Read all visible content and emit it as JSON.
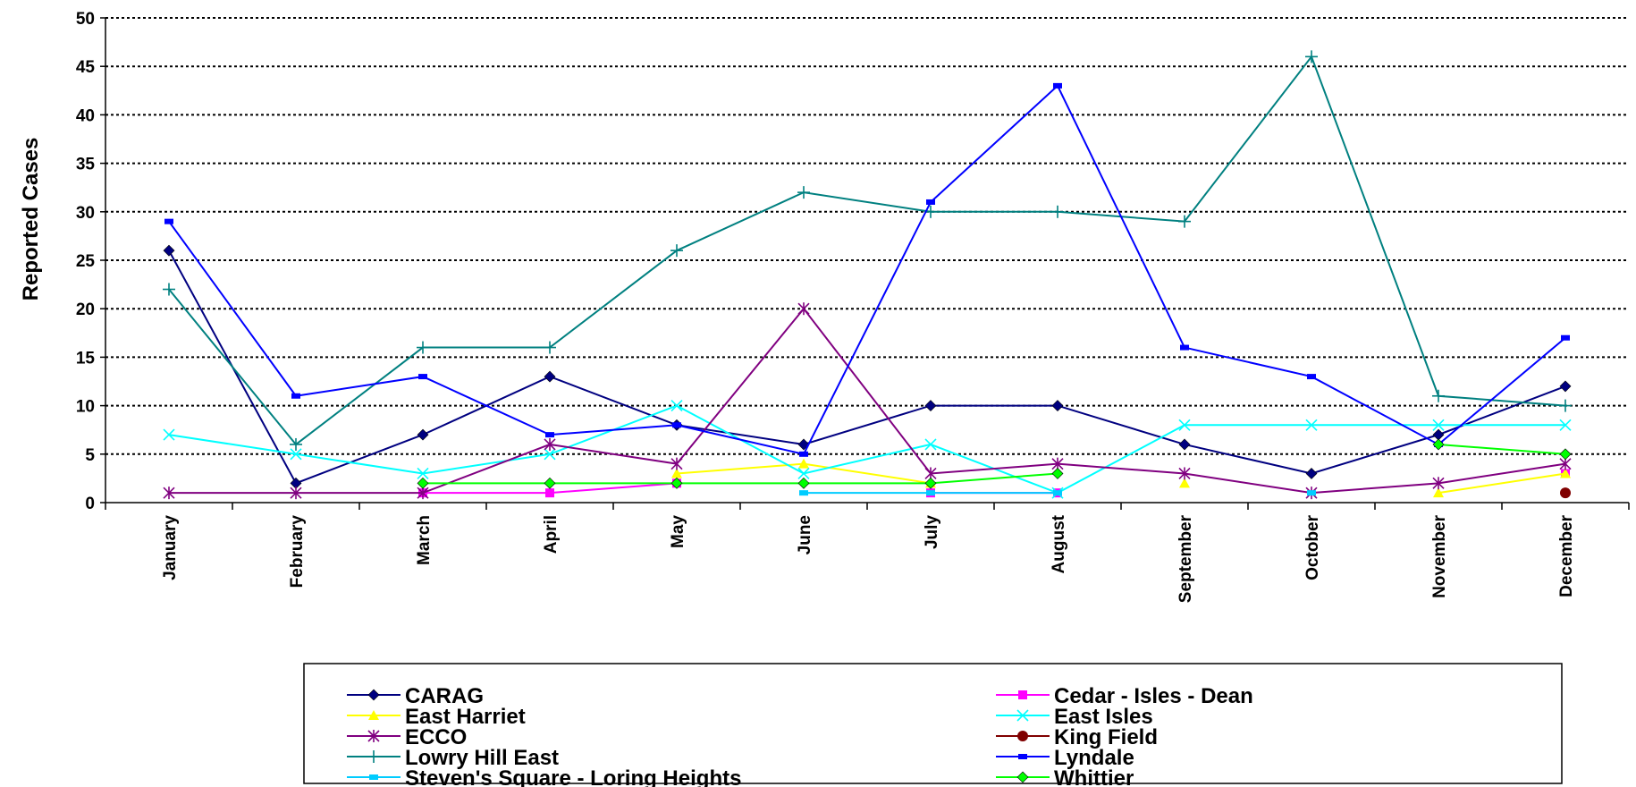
{
  "chart_data": {
    "type": "line",
    "title": "",
    "xlabel": "",
    "ylabel": "Reported Cases",
    "ylim": [
      0,
      50
    ],
    "yticks": [
      0,
      5,
      10,
      15,
      20,
      25,
      30,
      35,
      40,
      45,
      50
    ],
    "grid": true,
    "legend_position": "bottom",
    "categories": [
      "January",
      "February",
      "March",
      "April",
      "May",
      "June",
      "July",
      "August",
      "September",
      "October",
      "November",
      "December"
    ],
    "series": [
      {
        "name": "CARAG",
        "color": "#000080",
        "marker": "diamond",
        "values": [
          26,
          2,
          7,
          13,
          8,
          6,
          10,
          10,
          6,
          3,
          7,
          12
        ]
      },
      {
        "name": "Cedar - Isles - Dean",
        "color": "#ff00ff",
        "marker": "square",
        "values": [
          null,
          null,
          1,
          1,
          2,
          null,
          1,
          1,
          null,
          null,
          null,
          3
        ]
      },
      {
        "name": "East Harriet",
        "color": "#ffff00",
        "marker": "triangle",
        "values": [
          null,
          null,
          null,
          null,
          3,
          4,
          2,
          null,
          2,
          null,
          1,
          3
        ]
      },
      {
        "name": "East Isles",
        "color": "#00ffff",
        "marker": "x",
        "values": [
          7,
          5,
          3,
          5,
          10,
          3,
          6,
          1,
          8,
          8,
          8,
          8
        ]
      },
      {
        "name": "ECCO",
        "color": "#800080",
        "marker": "star",
        "values": [
          1,
          1,
          1,
          6,
          4,
          20,
          3,
          4,
          3,
          1,
          2,
          4
        ]
      },
      {
        "name": "King Field",
        "color": "#800000",
        "marker": "circle",
        "values": [
          null,
          null,
          null,
          null,
          null,
          null,
          null,
          null,
          null,
          null,
          null,
          1
        ]
      },
      {
        "name": "Lowry Hill East",
        "color": "#008080",
        "marker": "plus",
        "values": [
          22,
          6,
          16,
          16,
          26,
          32,
          30,
          30,
          29,
          46,
          11,
          10
        ]
      },
      {
        "name": "Lyndale",
        "color": "#0000ff",
        "marker": "dash",
        "values": [
          29,
          11,
          13,
          7,
          8,
          5,
          31,
          43,
          16,
          13,
          6,
          17
        ]
      },
      {
        "name": "Steven's Square - Loring Heights",
        "color": "#00ccff",
        "marker": "dash",
        "values": [
          null,
          null,
          null,
          null,
          null,
          1,
          1,
          1,
          null,
          1,
          null,
          null
        ]
      },
      {
        "name": "Whittier",
        "color": "#00ff00",
        "marker": "diamond",
        "values": [
          null,
          null,
          2,
          2,
          2,
          2,
          2,
          3,
          null,
          null,
          6,
          5
        ]
      }
    ]
  }
}
